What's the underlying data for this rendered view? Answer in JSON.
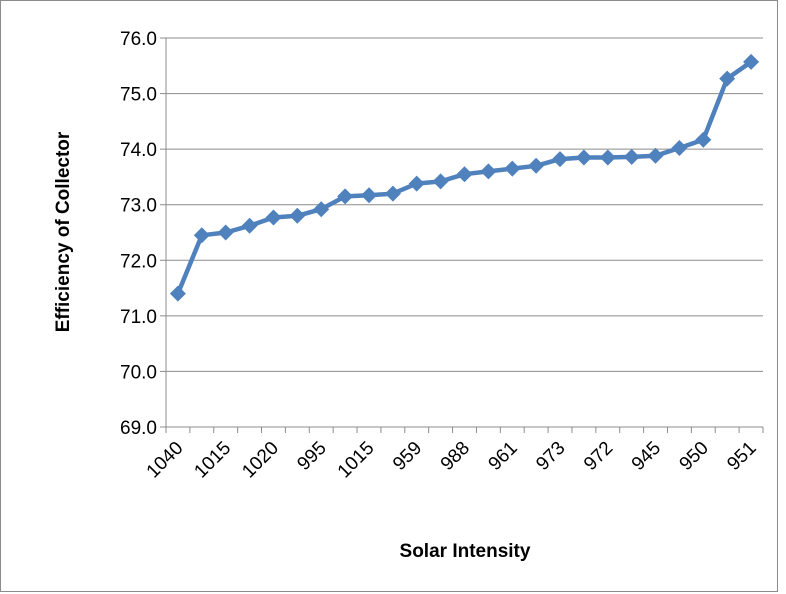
{
  "chart_data": {
    "type": "line",
    "title": "",
    "xlabel": "Solar Intensity",
    "ylabel": "Efficiency of Collector",
    "ylim": [
      69.0,
      76.0
    ],
    "y_ticks": [
      "69.0",
      "70.0",
      "71.0",
      "72.0",
      "73.0",
      "74.0",
      "75.0",
      "76.0"
    ],
    "grid": true,
    "legend": "none",
    "series_color": "#4f81bd",
    "categories": [
      "1040",
      "",
      "1015",
      "",
      "1020",
      "",
      "995",
      "",
      "1015",
      "",
      "959",
      "",
      "988",
      "",
      "961",
      "",
      "973",
      "",
      "972",
      "",
      "945",
      "",
      "950",
      "",
      "951"
    ],
    "series": [
      {
        "values": [
          71.4,
          72.45,
          72.5,
          72.62,
          72.77,
          72.8,
          72.92,
          73.15,
          73.17,
          73.2,
          73.38,
          73.42,
          73.55,
          73.6,
          73.65,
          73.7,
          73.82,
          73.85,
          73.85,
          73.86,
          73.88,
          74.02,
          74.17,
          75.27,
          75.57
        ]
      }
    ]
  }
}
